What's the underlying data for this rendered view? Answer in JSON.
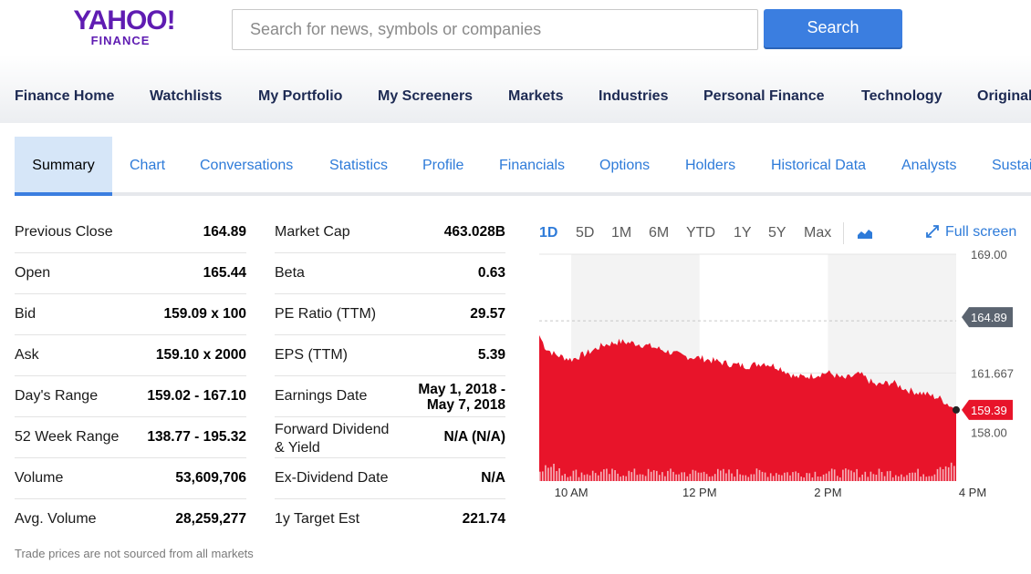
{
  "header": {
    "logo_top": "YAHOO!",
    "logo_bottom": "FINANCE",
    "search_placeholder": "Search for news, symbols or companies",
    "search_button": "Search"
  },
  "main_nav": [
    "Finance Home",
    "Watchlists",
    "My Portfolio",
    "My Screeners",
    "Markets",
    "Industries",
    "Personal Finance",
    "Technology",
    "Original"
  ],
  "sub_tabs": {
    "active": "Summary",
    "items": [
      "Chart",
      "Conversations",
      "Statistics",
      "Profile",
      "Financials",
      "Options",
      "Holders",
      "Historical Data",
      "Analysts",
      "Sustai"
    ]
  },
  "quote_left": [
    {
      "label": "Previous Close",
      "value": "164.89"
    },
    {
      "label": "Open",
      "value": "165.44"
    },
    {
      "label": "Bid",
      "value": "159.09 x 100"
    },
    {
      "label": "Ask",
      "value": "159.10 x 2000"
    },
    {
      "label": "Day's Range",
      "value": "159.02 - 167.10"
    },
    {
      "label": "52 Week Range",
      "value": "138.77 - 195.32"
    },
    {
      "label": "Volume",
      "value": "53,609,706"
    },
    {
      "label": "Avg. Volume",
      "value": "28,259,277"
    }
  ],
  "quote_right": [
    {
      "label": "Market Cap",
      "value": "463.028B"
    },
    {
      "label": "Beta",
      "value": "0.63"
    },
    {
      "label": "PE Ratio (TTM)",
      "value": "29.57"
    },
    {
      "label": "EPS (TTM)",
      "value": "5.39"
    },
    {
      "label": "Earnings Date",
      "value_line1": "May 1, 2018 -",
      "value_line2": "May 7, 2018"
    },
    {
      "label_line1": "Forward Dividend",
      "label_line2": "& Yield",
      "value": "N/A (N/A)"
    },
    {
      "label": "Ex-Dividend Date",
      "value": "N/A"
    },
    {
      "label": "1y Target Est",
      "value": "221.74"
    }
  ],
  "disclaimer": "Trade prices are not sourced from all markets",
  "chart_controls": {
    "ranges": [
      "1D",
      "5D",
      "1M",
      "6M",
      "YTD",
      "1Y",
      "5Y",
      "Max"
    ],
    "active_range": "1D",
    "full_screen": "Full screen"
  },
  "chart_data": {
    "type": "area",
    "x_labels": [
      "10 AM",
      "12 PM",
      "2 PM",
      "4 PM"
    ],
    "y_ticks": [
      "169.00",
      "161.667",
      "158.00"
    ],
    "ylim": [
      155.0,
      169.0
    ],
    "previous_close_label": "164.89",
    "current_price_label": "159.39",
    "series_color": "#e8142a",
    "prev_close_color": "#5b6470",
    "price_points": [
      [
        9.5,
        164.0
      ],
      [
        9.6,
        163.2
      ],
      [
        9.75,
        162.8
      ],
      [
        10.0,
        162.5
      ],
      [
        10.25,
        162.9
      ],
      [
        10.5,
        163.4
      ],
      [
        10.75,
        163.6
      ],
      [
        11.0,
        163.5
      ],
      [
        11.25,
        163.3
      ],
      [
        11.5,
        163.0
      ],
      [
        11.75,
        162.7
      ],
      [
        12.0,
        162.6
      ],
      [
        12.25,
        162.4
      ],
      [
        12.5,
        162.2
      ],
      [
        12.75,
        162.1
      ],
      [
        13.0,
        162.3
      ],
      [
        13.25,
        162.0
      ],
      [
        13.5,
        161.4
      ],
      [
        13.75,
        161.5
      ],
      [
        14.0,
        161.7
      ],
      [
        14.25,
        161.3
      ],
      [
        14.5,
        161.6
      ],
      [
        14.75,
        160.9
      ],
      [
        15.0,
        161.1
      ],
      [
        15.25,
        160.6
      ],
      [
        15.5,
        160.4
      ],
      [
        15.75,
        160.1
      ],
      [
        16.0,
        159.39
      ]
    ]
  }
}
